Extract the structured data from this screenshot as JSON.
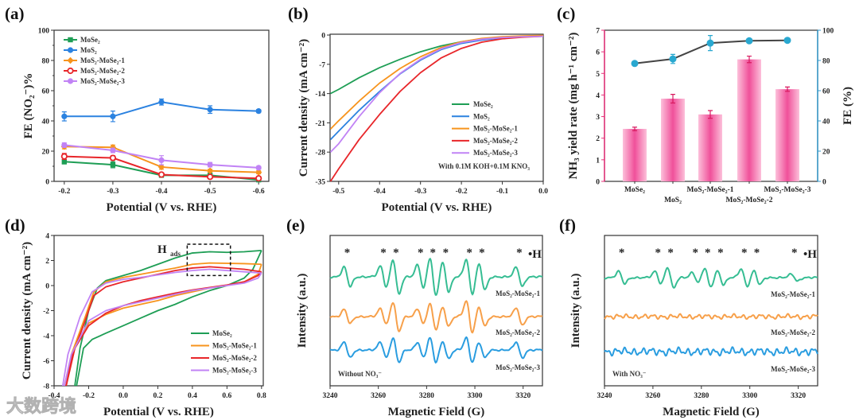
{
  "watermark": "大数跨境",
  "chart_data": [
    {
      "panel": "(a)",
      "type": "line",
      "xlabel": "Potential (V vs. RHE)",
      "ylabel": "FE (NO₂⁻)%",
      "x": [
        -0.2,
        -0.3,
        -0.4,
        -0.5,
        -0.6
      ],
      "xticks": [
        "-0.2",
        "-0.3",
        "-0.4",
        "-0.5",
        "-0.6"
      ],
      "yticks": [
        "0",
        "20",
        "40",
        "60",
        "80",
        "100"
      ],
      "ylim": [
        0,
        100
      ],
      "legend": "top-left",
      "series": [
        {
          "name": "MoSe₂",
          "color": "#1e9e55",
          "marker": "square",
          "values": [
            13,
            11,
            4,
            4,
            1
          ],
          "errors": [
            1.5,
            2,
            1,
            1,
            0.8
          ]
        },
        {
          "name": "MoS₂",
          "color": "#2b82e0",
          "marker": "circle",
          "values": [
            43,
            43,
            52.5,
            47.5,
            46.5
          ],
          "errors": [
            3,
            3.5,
            2,
            2.5,
            1
          ]
        },
        {
          "name": "MoS₂-MoSe₂-1",
          "color": "#f7941d",
          "marker": "diamond",
          "values": [
            23,
            22.5,
            9.5,
            7,
            6
          ],
          "errors": [
            1.5,
            1.5,
            1.5,
            1,
            1
          ]
        },
        {
          "name": "MoS₂-MoSe₂-2",
          "color": "#e8262a",
          "marker": "open-circle",
          "values": [
            16.5,
            15.5,
            4.5,
            3,
            2
          ],
          "errors": [
            2,
            1.5,
            1,
            1,
            0.8
          ]
        },
        {
          "name": "MoS₂-MoSe₂-3",
          "color": "#c183f5",
          "marker": "circle",
          "values": [
            24,
            20.5,
            14,
            11,
            9
          ],
          "errors": [
            1.5,
            1.5,
            3,
            1.5,
            1
          ]
        }
      ]
    },
    {
      "panel": "(b)",
      "type": "line",
      "xlabel": "Potential (V vs. RHE)",
      "ylabel": "Current density (mA cm⁻²)",
      "xticks": [
        "-0.5",
        "-0.4",
        "-0.3",
        "-0.2",
        "-0.1",
        "0.0"
      ],
      "yticks": [
        "0",
        "-7",
        "-14",
        "-21",
        "-28",
        "-35"
      ],
      "xlim": [
        -0.52,
        0.0
      ],
      "ylim": [
        -35,
        0
      ],
      "annotation": "With 0.1M KOH+0.1M KNO₃",
      "legend": "bottom-right",
      "x": [
        -0.52,
        -0.5,
        -0.45,
        -0.4,
        -0.35,
        -0.3,
        -0.25,
        -0.2,
        -0.15,
        -0.1,
        -0.05,
        0.0
      ],
      "series": [
        {
          "name": "MoSe₂",
          "color": "#1e9e55",
          "values": [
            -14,
            -13,
            -10.2,
            -7.8,
            -5.8,
            -4.0,
            -2.6,
            -1.6,
            -0.9,
            -0.5,
            -0.3,
            -0.2
          ]
        },
        {
          "name": "MoS₂",
          "color": "#2b82e0",
          "values": [
            -25,
            -23,
            -18,
            -13.5,
            -9.3,
            -6,
            -3.5,
            -2,
            -1.2,
            -0.7,
            -0.4,
            -0.3
          ]
        },
        {
          "name": "MoS₂-MoSe₂-1",
          "color": "#f7941d",
          "values": [
            -22.5,
            -20.5,
            -15.8,
            -11.5,
            -8,
            -5.2,
            -3,
            -1.6,
            -0.8,
            -0.4,
            -0.2,
            -0.1
          ]
        },
        {
          "name": "MoS₂-MoSe₂-2",
          "color": "#e8262a",
          "values": [
            -35,
            -32,
            -25,
            -19,
            -13.5,
            -9,
            -5.5,
            -3.2,
            -1.7,
            -0.9,
            -0.5,
            -0.3
          ]
        },
        {
          "name": "MoS₂-MoSe₂-3",
          "color": "#c183f5",
          "values": [
            -28,
            -26,
            -19.5,
            -13.8,
            -9.2,
            -5.8,
            -3.3,
            -1.8,
            -1.0,
            -0.6,
            -0.4,
            -0.3
          ]
        }
      ]
    },
    {
      "panel": "(c)",
      "type": "bar",
      "categories": [
        "MoSe₂",
        "MoS₂",
        "MoS₂-MoSe₂-1",
        "MoS₂-MoSe₂-2",
        "MoS₂-MoSe₂-3"
      ],
      "ylabel": "NH₃ yield rate (mg h⁻¹ cm⁻²)",
      "ylabel_right": "FE (%)",
      "yticks": [
        "0",
        "1",
        "2",
        "3",
        "4",
        "5",
        "6",
        "7"
      ],
      "yticks_right": [
        "0",
        "20",
        "40",
        "60",
        "80",
        "100"
      ],
      "ylim": [
        0,
        7
      ],
      "ylim_right": [
        0,
        100
      ],
      "bar_color": "#f0509a",
      "left_axis_color": "#e8307a",
      "right_axis_color": "#3399cc",
      "series": [
        {
          "name": "NH₃ yield rate",
          "values": [
            2.43,
            3.83,
            3.1,
            5.65,
            4.27
          ],
          "errors": [
            0.08,
            0.2,
            0.18,
            0.15,
            0.1
          ]
        },
        {
          "name": "FE",
          "type": "line",
          "color": "#29a8d0",
          "values": [
            78,
            81,
            91.5,
            93,
            93.3
          ],
          "errors": [
            1,
            3,
            5,
            1,
            1
          ]
        }
      ]
    },
    {
      "panel": "(d)",
      "type": "line",
      "xlabel": "Potential (V vs. RHE)",
      "ylabel": "Current density (mA cm⁻²)",
      "xticks": [
        "-0.4",
        "-0.2",
        "0.0",
        "0.2",
        "0.4",
        "0.6",
        "0.8"
      ],
      "yticks": [
        "-8",
        "-6",
        "-4",
        "-2",
        "0",
        "2",
        "4"
      ],
      "xlim": [
        -0.4,
        0.8
      ],
      "ylim": [
        -8,
        4
      ],
      "annotation": {
        "main": "H",
        "sub": "ads"
      },
      "legend": "bottom-right",
      "series": [
        {
          "name": "MoSe₂",
          "color": "#1e9e55",
          "points": [
            [
              0.8,
              2.8
            ],
            [
              0.7,
              2.7
            ],
            [
              0.6,
              2.65
            ],
            [
              0.5,
              2.7
            ],
            [
              0.4,
              2.6
            ],
            [
              0.3,
              2.2
            ],
            [
              0.2,
              1.7
            ],
            [
              0.1,
              1.2
            ],
            [
              0,
              0.8
            ],
            [
              -0.1,
              0.4
            ],
            [
              -0.15,
              -0.2
            ],
            [
              -0.2,
              -2
            ],
            [
              -0.25,
              -5
            ],
            [
              -0.28,
              -8
            ],
            [
              -0.27,
              -8
            ],
            [
              -0.23,
              -5
            ],
            [
              -0.18,
              -4.3
            ],
            [
              -0.1,
              -3.8
            ],
            [
              0,
              -3.2
            ],
            [
              0.1,
              -2.6
            ],
            [
              0.2,
              -2.0
            ],
            [
              0.3,
              -1.5
            ],
            [
              0.4,
              -0.9
            ],
            [
              0.5,
              -0.4
            ],
            [
              0.6,
              0
            ],
            [
              0.7,
              0.6
            ],
            [
              0.75,
              1.3
            ],
            [
              0.8,
              2.8
            ]
          ]
        },
        {
          "name": "MoS₂-MoSe₂-1",
          "color": "#f7941d",
          "points": [
            [
              0.8,
              1.7
            ],
            [
              0.7,
              1.75
            ],
            [
              0.5,
              1.8
            ],
            [
              0.4,
              1.7
            ],
            [
              0.3,
              1.4
            ],
            [
              0.2,
              1.15
            ],
            [
              0.1,
              0.9
            ],
            [
              0,
              0.65
            ],
            [
              -0.1,
              0.3
            ],
            [
              -0.17,
              -0.5
            ],
            [
              -0.22,
              -2.5
            ],
            [
              -0.3,
              -5.5
            ],
            [
              -0.34,
              -8
            ],
            [
              -0.33,
              -8
            ],
            [
              -0.28,
              -5
            ],
            [
              -0.2,
              -3
            ],
            [
              -0.1,
              -2.3
            ],
            [
              0,
              -1.8
            ],
            [
              0.1,
              -1.5
            ],
            [
              0.2,
              -1.2
            ],
            [
              0.3,
              -0.8
            ],
            [
              0.4,
              -0.5
            ],
            [
              0.5,
              -0.2
            ],
            [
              0.6,
              0
            ],
            [
              0.7,
              0.3
            ],
            [
              0.78,
              0.9
            ],
            [
              0.8,
              1.7
            ]
          ]
        },
        {
          "name": "MoS₂-MoSe₂-2",
          "color": "#e8262a",
          "points": [
            [
              0.8,
              1.1
            ],
            [
              0.7,
              1.3
            ],
            [
              0.5,
              1.5
            ],
            [
              0.4,
              1.4
            ],
            [
              0.3,
              1.2
            ],
            [
              0.2,
              0.9
            ],
            [
              0.1,
              0.6
            ],
            [
              0,
              0.3
            ],
            [
              -0.1,
              -0.1
            ],
            [
              -0.17,
              -0.8
            ],
            [
              -0.22,
              -2.8
            ],
            [
              -0.3,
              -5.8
            ],
            [
              -0.34,
              -8
            ],
            [
              -0.33,
              -8
            ],
            [
              -0.28,
              -5
            ],
            [
              -0.2,
              -3.2
            ],
            [
              -0.1,
              -2.2
            ],
            [
              0,
              -1.6
            ],
            [
              0.1,
              -1.2
            ],
            [
              0.2,
              -0.9
            ],
            [
              0.3,
              -0.6
            ],
            [
              0.4,
              -0.35
            ],
            [
              0.5,
              -0.15
            ],
            [
              0.6,
              0.05
            ],
            [
              0.7,
              0.3
            ],
            [
              0.78,
              0.8
            ],
            [
              0.8,
              1.1
            ]
          ]
        },
        {
          "name": "MoS₂-MoSe₂-3",
          "color": "#c183f5",
          "points": [
            [
              0.8,
              1.0
            ],
            [
              0.7,
              1.1
            ],
            [
              0.5,
              1.3
            ],
            [
              0.4,
              1.2
            ],
            [
              0.3,
              1.05
            ],
            [
              0.2,
              0.85
            ],
            [
              0.1,
              0.65
            ],
            [
              0,
              0.5
            ],
            [
              -0.1,
              0.2
            ],
            [
              -0.18,
              -0.5
            ],
            [
              -0.25,
              -2.5
            ],
            [
              -0.32,
              -5.5
            ],
            [
              -0.35,
              -8
            ],
            [
              -0.34,
              -8
            ],
            [
              -0.3,
              -5.5
            ],
            [
              -0.2,
              -2.8
            ],
            [
              -0.1,
              -2.0
            ],
            [
              0,
              -1.6
            ],
            [
              0.1,
              -1.3
            ],
            [
              0.2,
              -1.0
            ],
            [
              0.3,
              -0.7
            ],
            [
              0.4,
              -0.4
            ],
            [
              0.5,
              -0.2
            ],
            [
              0.6,
              0
            ],
            [
              0.7,
              0.2
            ],
            [
              0.78,
              0.6
            ],
            [
              0.8,
              1.0
            ]
          ]
        }
      ]
    },
    {
      "panel": "(e)",
      "type": "line",
      "xlabel": "Magnetic Field (G)",
      "ylabel": "Intensity (a.u.)",
      "xticks": [
        "3240",
        "3260",
        "3280",
        "3300",
        "3320"
      ],
      "xlim": [
        3240,
        3328
      ],
      "annotation": "Without NO₃⁻",
      "peak_marker": "*",
      "radical_label": "•H",
      "peaks_G": [
        3247.1,
        3262.1,
        3267.3,
        3277.5,
        3282.6,
        3287.9,
        3297.7,
        3302.9,
        3318.4
      ],
      "series": [
        {
          "name": "MoS₂-MoSe₂-1",
          "color": "#36bd93",
          "amplitudes": [
            0.55,
            0.6,
            1.0,
            0.7,
            1.1,
            0.85,
            1.0,
            0.75,
            0.55
          ],
          "noise": 0.03
        },
        {
          "name": "MoS₂-MoSe₂-2",
          "color": "#f7a04a",
          "amplitudes": [
            0.4,
            0.45,
            0.85,
            0.45,
            0.75,
            0.55,
            0.9,
            0.55,
            0.5
          ],
          "noise": 0.03
        },
        {
          "name": "MoS₂-MoSe₂-3",
          "color": "#2a9de0",
          "amplitudes": [
            0.45,
            0.45,
            0.7,
            0.45,
            0.7,
            0.5,
            0.7,
            0.45,
            0.45
          ],
          "noise": 0.03
        }
      ]
    },
    {
      "panel": "(f)",
      "type": "line",
      "xlabel": "Magnetic Field (G)",
      "ylabel": "Intensity (a.u.)",
      "xticks": [
        "3240",
        "3260",
        "3280",
        "3300",
        "3320"
      ],
      "xlim": [
        3240,
        3328
      ],
      "annotation": "With NO₃⁻",
      "peak_marker": "*",
      "radical_label": "•H",
      "peaks_G": [
        3247.1,
        3262.1,
        3267.3,
        3277.5,
        3282.6,
        3287.9,
        3297.7,
        3302.9,
        3318.4
      ],
      "series": [
        {
          "name": "MoS₂-MoSe₂-1",
          "color": "#36bd93",
          "amplitudes": [
            0.35,
            0.35,
            0.6,
            0.3,
            0.55,
            0.4,
            0.5,
            0.4,
            0.2
          ],
          "noise": 0.03
        },
        {
          "name": "MoS₂-MoSe₂-2",
          "color": "#f7a04a",
          "amplitudes": [
            0,
            0,
            0,
            0,
            0,
            0,
            0,
            0,
            0
          ],
          "noise": 0.08
        },
        {
          "name": "MoS₂-MoSe₂-3",
          "color": "#2a9de0",
          "amplitudes": [
            0,
            0,
            0,
            0,
            0,
            0,
            0,
            0,
            0
          ],
          "noise": 0.13
        }
      ]
    }
  ]
}
